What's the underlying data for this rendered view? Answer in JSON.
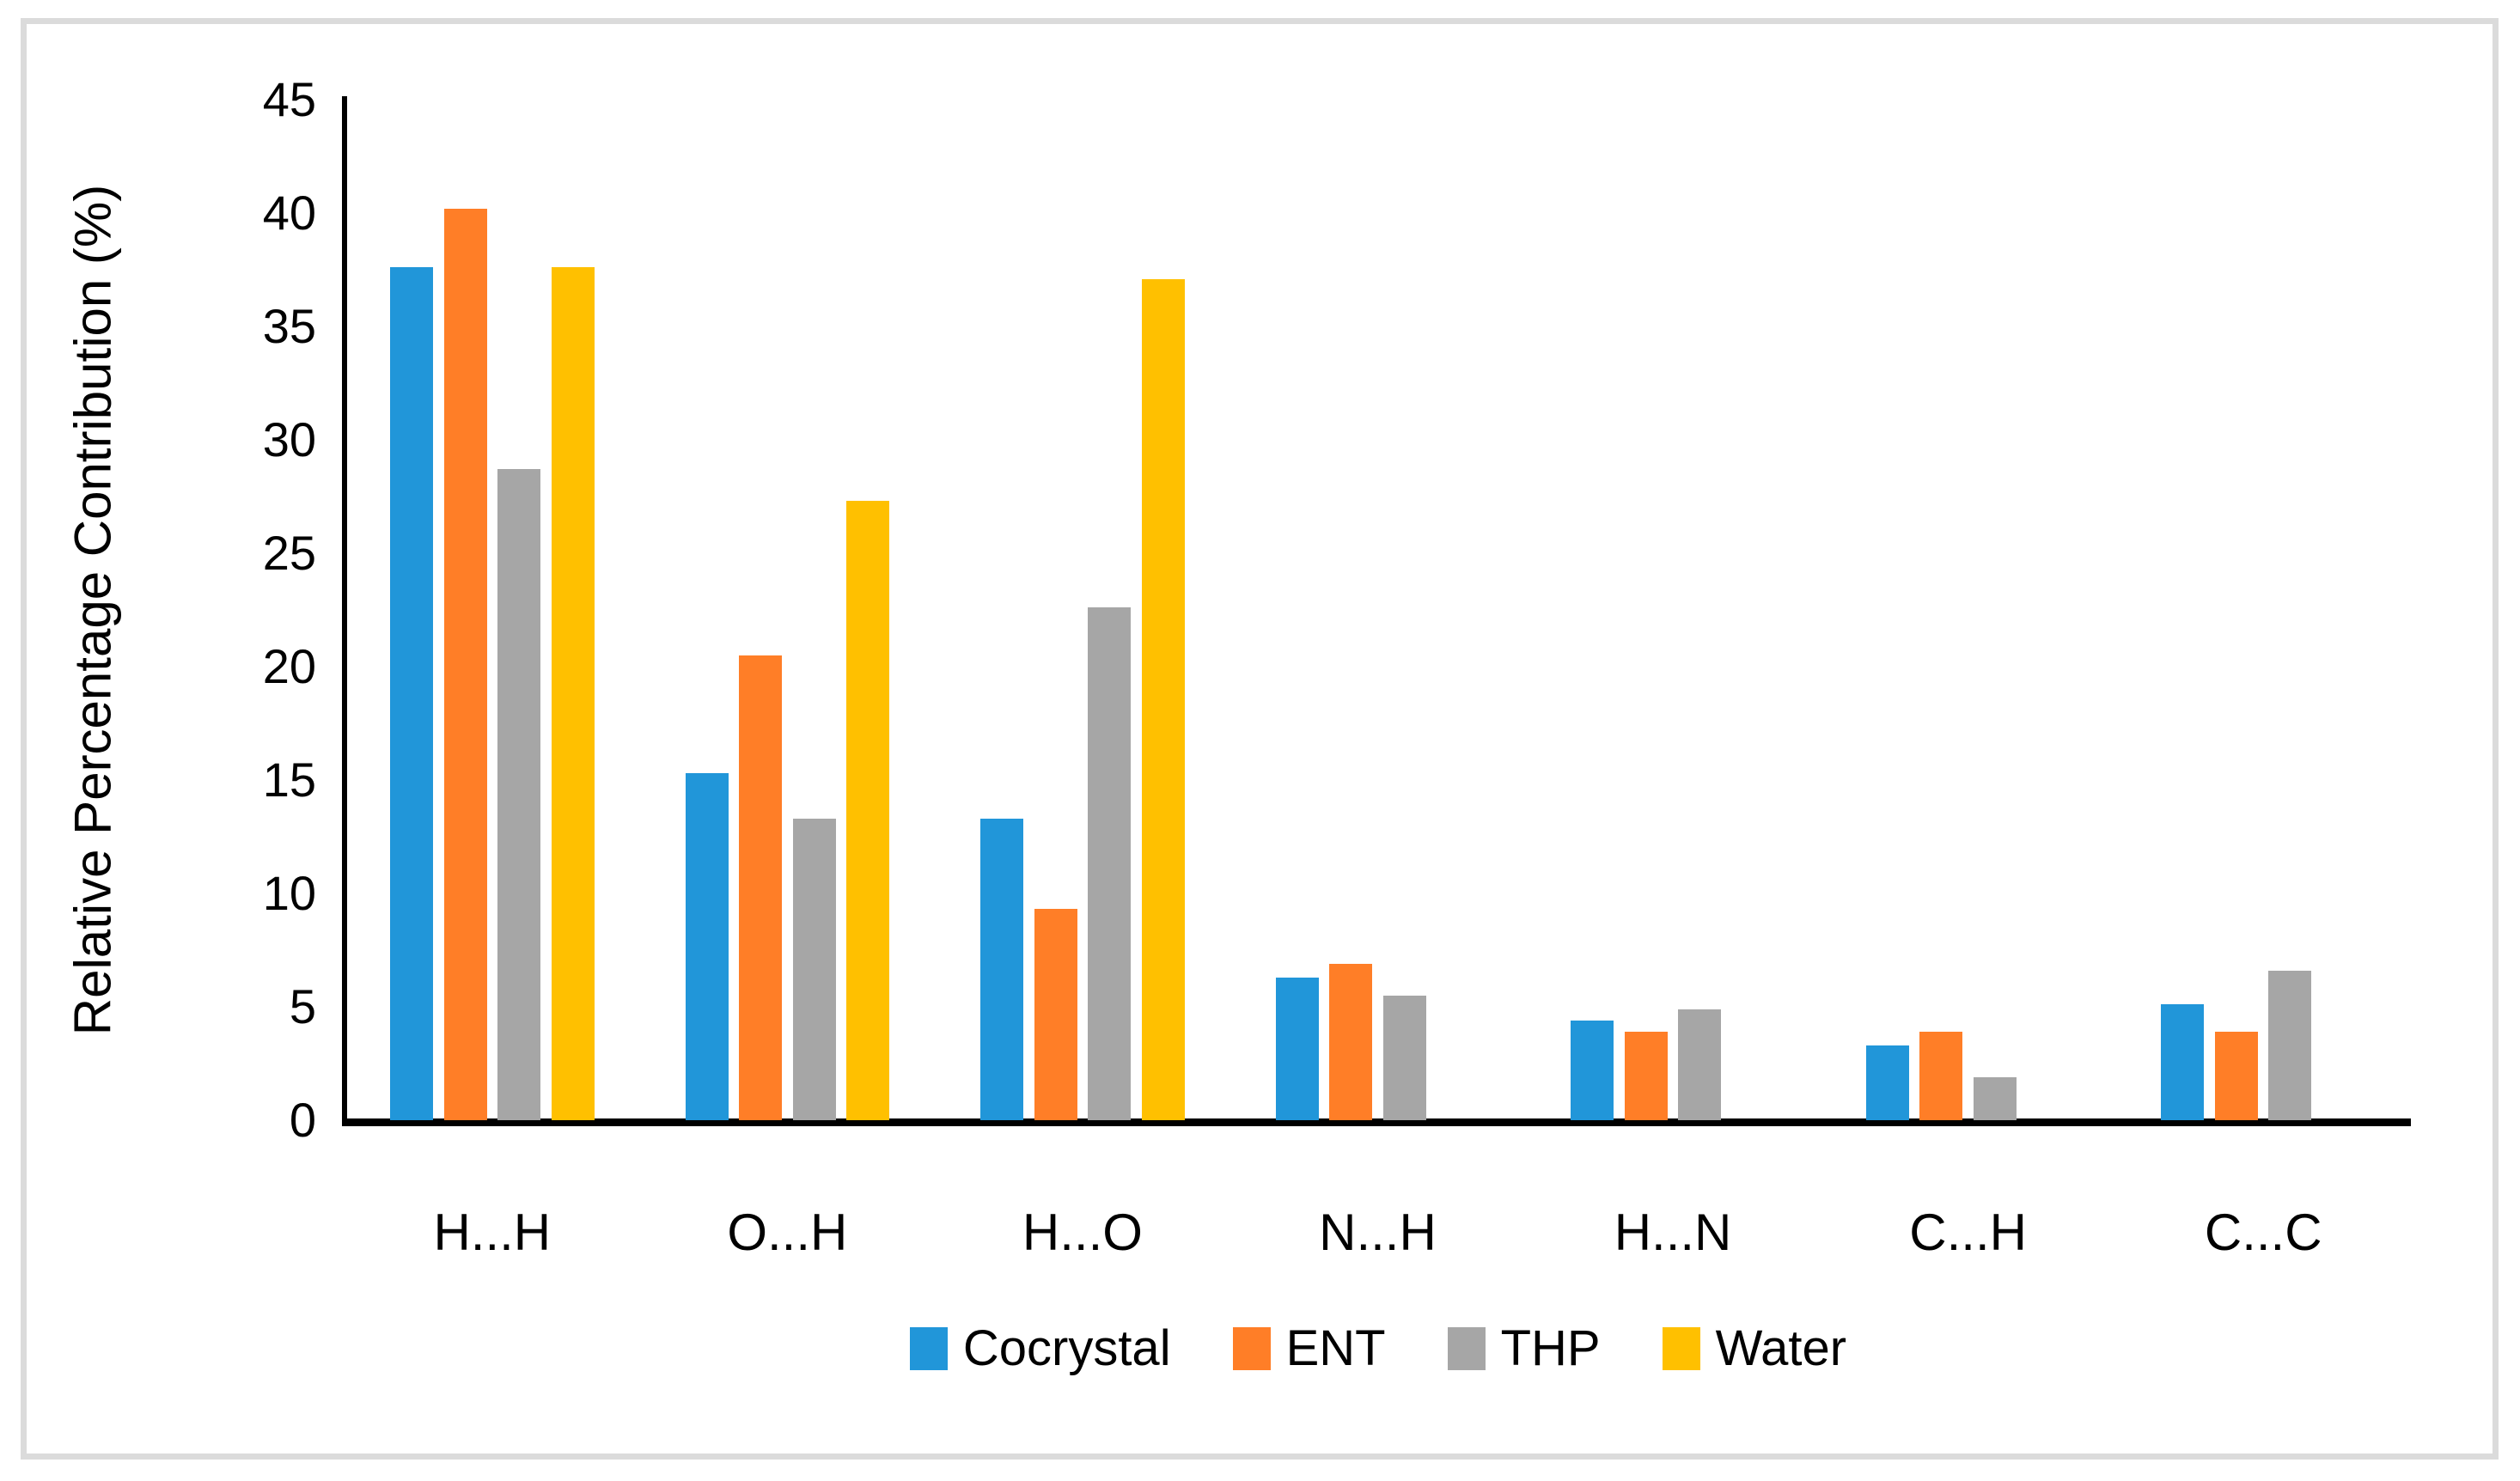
{
  "chart_data": {
    "type": "bar",
    "title": "",
    "xlabel": "",
    "ylabel": "Relative Percentage Contribution (%)",
    "ylim": [
      0,
      45
    ],
    "yticks": [
      0,
      5,
      10,
      15,
      20,
      25,
      30,
      35,
      40,
      45
    ],
    "grid": false,
    "legend_position": "bottom",
    "categories": [
      "H...H",
      "O...H",
      "H...O",
      "N...H",
      "H...N",
      "C...H",
      "C...C"
    ],
    "series": [
      {
        "name": "Cocrystal",
        "color": "#2196D9",
        "values": [
          37.6,
          15.3,
          13.3,
          6.3,
          4.4,
          3.3,
          5.1
        ]
      },
      {
        "name": "ENT",
        "color": "#FF7E27",
        "values": [
          40.2,
          20.5,
          9.3,
          6.9,
          3.9,
          3.9,
          3.9
        ]
      },
      {
        "name": "THP",
        "color": "#A6A6A6",
        "values": [
          28.7,
          13.3,
          22.6,
          5.5,
          4.9,
          1.9,
          6.6
        ]
      },
      {
        "name": "Water",
        "color": "#FFC000",
        "values": [
          37.6,
          27.3,
          37.1,
          null,
          null,
          null,
          null
        ]
      }
    ]
  },
  "colors": {
    "axis": "#000000",
    "frame_border": "#DBDBDB",
    "background": "#FFFFFF",
    "text": "#000000"
  }
}
